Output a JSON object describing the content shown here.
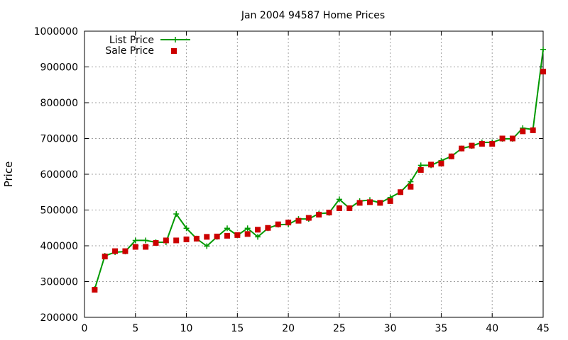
{
  "chart_data": {
    "type": "line",
    "title": "Jan 2004 94587 Home Prices",
    "xlabel": "",
    "ylabel": "Price",
    "xlim": [
      0,
      45
    ],
    "ylim": [
      200000,
      1000000
    ],
    "x_ticks": [
      "0",
      "5",
      "10",
      "15",
      "20",
      "25",
      "30",
      "35",
      "40",
      "45"
    ],
    "y_ticks": [
      "200000",
      "300000",
      "400000",
      "500000",
      "600000",
      "700000",
      "800000",
      "900000",
      "1000000"
    ],
    "x_tick_values": [
      0,
      5,
      10,
      15,
      20,
      25,
      30,
      35,
      40,
      45
    ],
    "y_tick_values": [
      200000,
      300000,
      400000,
      500000,
      600000,
      700000,
      800000,
      900000,
      1000000
    ],
    "grid": true,
    "legend_position": "top-left",
    "x": [
      1,
      2,
      3,
      4,
      5,
      6,
      7,
      8,
      9,
      10,
      11,
      12,
      13,
      14,
      15,
      16,
      17,
      18,
      19,
      20,
      21,
      22,
      23,
      24,
      25,
      26,
      27,
      28,
      29,
      30,
      31,
      32,
      33,
      34,
      35,
      36,
      37,
      38,
      39,
      40,
      41,
      42,
      43,
      44,
      45
    ],
    "series": [
      {
        "name": "List Price",
        "color": "#009900",
        "marker": "plus",
        "values": [
          279000,
          372000,
          382000,
          384000,
          415000,
          415000,
          410000,
          410000,
          489000,
          449000,
          420000,
          399000,
          425000,
          449000,
          429000,
          449000,
          425000,
          449000,
          459000,
          460000,
          475000,
          475000,
          490000,
          492000,
          530000,
          505000,
          525000,
          528000,
          520000,
          535000,
          550000,
          579000,
          625000,
          625000,
          638000,
          650000,
          672000,
          679000,
          689000,
          689000,
          699000,
          699000,
          729000,
          725000,
          949000
        ]
      },
      {
        "name": "Sale Price",
        "color": "#cc0000",
        "marker": "square",
        "values": [
          277000,
          370000,
          385000,
          385000,
          397000,
          397000,
          408000,
          415000,
          415000,
          418000,
          420000,
          425000,
          426000,
          428000,
          430000,
          433000,
          445000,
          450000,
          460000,
          465000,
          470000,
          478000,
          487000,
          493000,
          505000,
          505000,
          520000,
          522000,
          520000,
          525000,
          550000,
          565000,
          612000,
          627000,
          630000,
          650000,
          672000,
          680000,
          685000,
          685000,
          700000,
          700000,
          720000,
          723000,
          887000
        ]
      }
    ]
  }
}
